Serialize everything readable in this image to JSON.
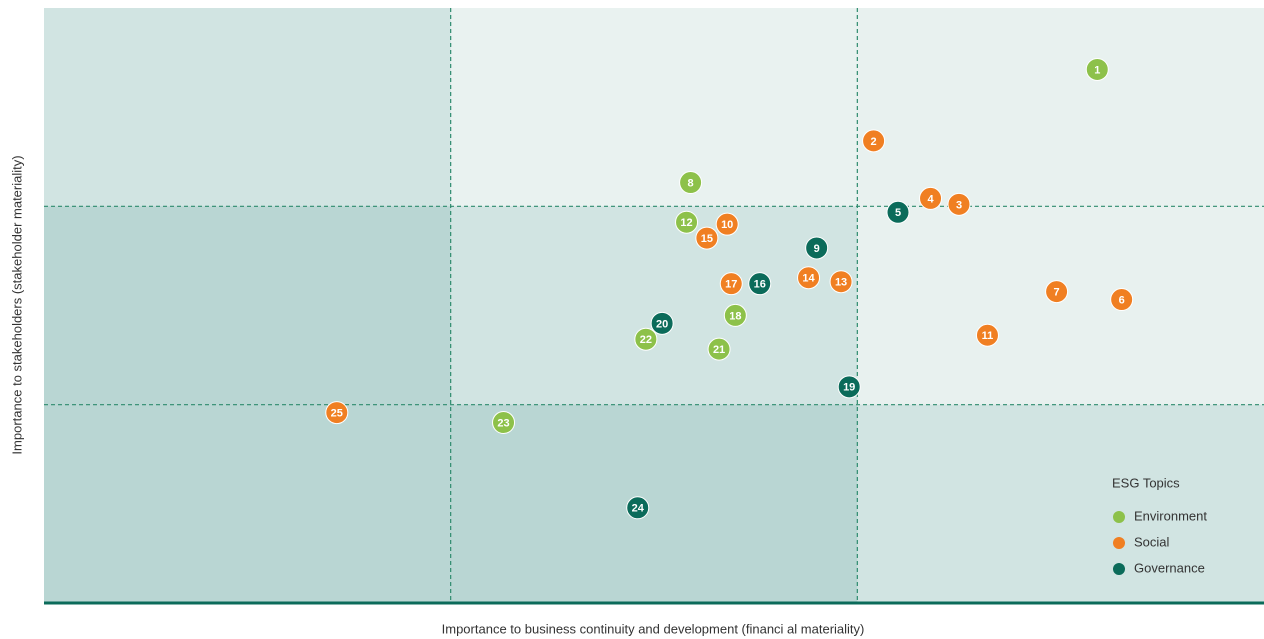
{
  "chart_data": {
    "type": "scatter",
    "x_label": "Importance to business continuity   and development (financi al materiality)",
    "y_label": "Importance to stakeholders (stakeholder materiality)",
    "xlim": [
      0,
      3
    ],
    "ylim": [
      0,
      3
    ],
    "xticks": [
      1,
      2
    ],
    "yticks": [
      1,
      2
    ],
    "grid": true,
    "legend_title": "ESG Topics",
    "legend": "bottom-right",
    "series": [
      {
        "name": "Environment",
        "color": "#8dc14a",
        "labels": [
          "1",
          "8",
          "12",
          "18",
          "21",
          "22",
          "23"
        ],
        "x": [
          2.59,
          1.59,
          1.58,
          1.7,
          1.66,
          1.48,
          1.13
        ],
        "values": [
          2.69,
          2.12,
          1.92,
          1.45,
          1.28,
          1.33,
          0.91
        ]
      },
      {
        "name": "Social",
        "color": "#f07f22",
        "labels": [
          "2",
          "3",
          "4",
          "6",
          "7",
          "10",
          "11",
          "13",
          "14",
          "15",
          "17",
          "25"
        ],
        "x": [
          2.04,
          2.25,
          2.18,
          2.65,
          2.49,
          1.68,
          2.32,
          1.96,
          1.88,
          1.63,
          1.69,
          0.72
        ],
        "values": [
          2.33,
          2.01,
          2.04,
          1.53,
          1.57,
          1.91,
          1.35,
          1.62,
          1.64,
          1.84,
          1.61,
          0.96
        ]
      },
      {
        "name": "Governance",
        "color": "#0b6b5a",
        "labels": [
          "5",
          "9",
          "16",
          "19",
          "20",
          "24"
        ],
        "x": [
          2.1,
          1.9,
          1.76,
          1.98,
          1.52,
          1.46
        ],
        "values": [
          1.97,
          1.79,
          1.61,
          1.09,
          1.41,
          0.48
        ]
      }
    ]
  }
}
